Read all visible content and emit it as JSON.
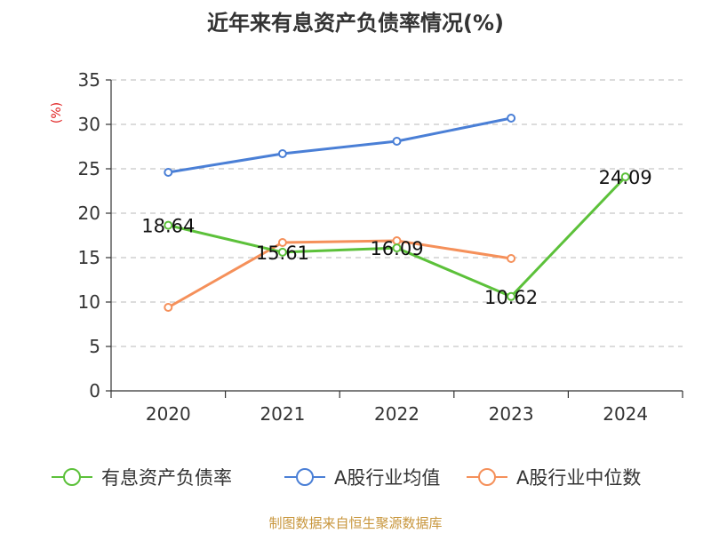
{
  "title": "近年来有息资产负债率情况(%)",
  "source": "制图数据来自恒生聚源数据库",
  "chart_data": {
    "type": "line",
    "title": "近年来有息资产负债率情况(%)",
    "ylabel": "(%)",
    "xlabel": "",
    "categories": [
      "2020",
      "2021",
      "2022",
      "2023",
      "2024"
    ],
    "ylim": [
      0,
      35
    ],
    "yticks": [
      0,
      5,
      10,
      15,
      20,
      25,
      30,
      35
    ],
    "grid": true,
    "legend_position": "bottom",
    "series": [
      {
        "name": "有息资产负债率",
        "color": "#5cc13a",
        "values": [
          18.64,
          15.61,
          16.09,
          10.62,
          24.09
        ],
        "labels": [
          "18.64",
          "15.61",
          "16.09",
          "10.62",
          "24.09"
        ]
      },
      {
        "name": "A股行业均值",
        "color": "#4a7fd6",
        "values": [
          24.6,
          26.7,
          28.1,
          30.7,
          null
        ]
      },
      {
        "name": "A股行业中位数",
        "color": "#f5905a",
        "values": [
          9.4,
          16.7,
          16.9,
          14.9,
          null
        ]
      }
    ]
  }
}
